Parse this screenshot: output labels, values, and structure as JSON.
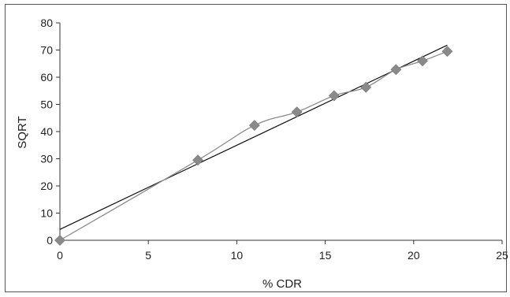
{
  "chart_data": {
    "type": "scatter",
    "title": "",
    "xlabel": "% CDR",
    "ylabel": "SQRT",
    "xlim": [
      0,
      25
    ],
    "ylim": [
      0,
      80
    ],
    "x_ticks": [
      0,
      5,
      10,
      15,
      20,
      25
    ],
    "y_ticks": [
      0,
      10,
      20,
      30,
      40,
      50,
      60,
      70,
      80
    ],
    "grid": false,
    "legend": "none",
    "series": [
      {
        "x": [
          0,
          7.8,
          11.0,
          13.4,
          15.5,
          17.3,
          19.0,
          20.5,
          21.9
        ],
        "y": [
          0,
          29.5,
          42.3,
          47.2,
          53.2,
          56.3,
          62.8,
          66.0,
          69.5
        ],
        "marker": "diamond",
        "connect": "smooth-line",
        "color": "#8a8a8a"
      }
    ],
    "trendline": {
      "kind": "linear",
      "x": [
        0,
        21.9
      ],
      "y": [
        4.0,
        71.8
      ],
      "color": "#111111"
    }
  }
}
